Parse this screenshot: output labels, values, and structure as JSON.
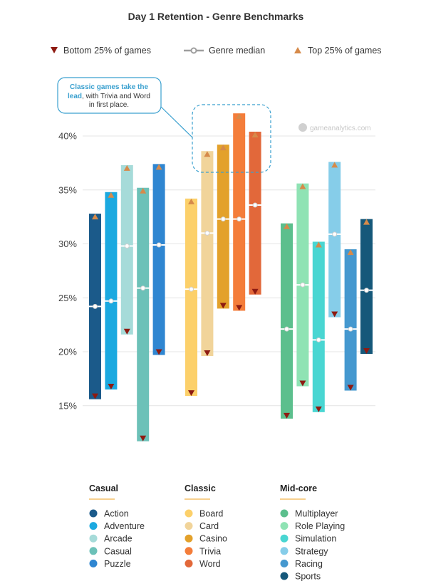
{
  "chart_data": {
    "type": "range-bar",
    "title": "Day 1 Retention - Genre Benchmarks",
    "legend": {
      "bottom": "Bottom 25% of games",
      "median": "Genre median",
      "top": "Top 25% of games"
    },
    "y_ticks": [
      "40%",
      "35%",
      "30%",
      "25%",
      "20%",
      "15%"
    ],
    "y_tick_values": [
      40,
      35,
      30,
      25,
      20,
      15
    ],
    "ylim": [
      15,
      40
    ],
    "grid": true,
    "watermark": "gameanalytics.com",
    "annotation": {
      "highlight": "Classic games take the lead",
      "rest": ", with Trivia and Word",
      "line2": "in first place."
    },
    "groups": [
      {
        "name": "Casual",
        "series": [
          {
            "name": "Action",
            "color": "#1b5a8a",
            "bottom": 15.6,
            "median": 24.2,
            "top": 32.8
          },
          {
            "name": "Adventure",
            "color": "#1ba9e0",
            "bottom": 16.5,
            "median": 24.7,
            "top": 34.8
          },
          {
            "name": "Arcade",
            "color": "#a6dbd9",
            "bottom": 21.6,
            "median": 29.8,
            "top": 37.3
          },
          {
            "name": "Casual",
            "color": "#6cc1b8",
            "bottom": 11.7,
            "median": 25.9,
            "top": 35.2
          },
          {
            "name": "Puzzle",
            "color": "#2f86d1",
            "bottom": 19.7,
            "median": 29.9,
            "top": 37.4
          }
        ]
      },
      {
        "name": "Classic",
        "series": [
          {
            "name": "Board",
            "color": "#fcd06a",
            "bottom": 15.9,
            "median": 25.8,
            "top": 34.2
          },
          {
            "name": "Card",
            "color": "#f1d49a",
            "bottom": 19.6,
            "median": 31.0,
            "top": 38.6
          },
          {
            "name": "Casino",
            "color": "#e3a12b",
            "bottom": 24.0,
            "median": 32.3,
            "top": 39.2
          },
          {
            "name": "Trivia",
            "color": "#f47d3a",
            "bottom": 23.8,
            "median": 32.3,
            "top": 42.1
          },
          {
            "name": "Word",
            "color": "#e2683a",
            "bottom": 25.3,
            "median": 33.6,
            "top": 40.4
          }
        ]
      },
      {
        "name": "Mid-core",
        "series": [
          {
            "name": "Multiplayer",
            "color": "#5cbf8d",
            "bottom": 13.8,
            "median": 22.1,
            "top": 31.9
          },
          {
            "name": "Role Playing",
            "color": "#8fe3b4",
            "bottom": 16.8,
            "median": 26.2,
            "top": 35.6
          },
          {
            "name": "Simulation",
            "color": "#49d6d2",
            "bottom": 14.4,
            "median": 21.1,
            "top": 30.2
          },
          {
            "name": "Strategy",
            "color": "#86cde9",
            "bottom": 23.2,
            "median": 30.9,
            "top": 37.6
          },
          {
            "name": "Racing",
            "color": "#4598cf",
            "bottom": 16.4,
            "median": 22.1,
            "top": 29.5
          },
          {
            "name": "Sports",
            "color": "#15587a",
            "bottom": 19.8,
            "median": 25.7,
            "top": 32.3
          }
        ]
      }
    ]
  },
  "colors": {
    "bottom_marker": "#8e1b12",
    "top_marker": "#d68a4a",
    "median_line": "#ffffff",
    "grid": "#e4e4e4",
    "group_underline": "#f2b54a",
    "callout_border": "#3aa0cf"
  }
}
